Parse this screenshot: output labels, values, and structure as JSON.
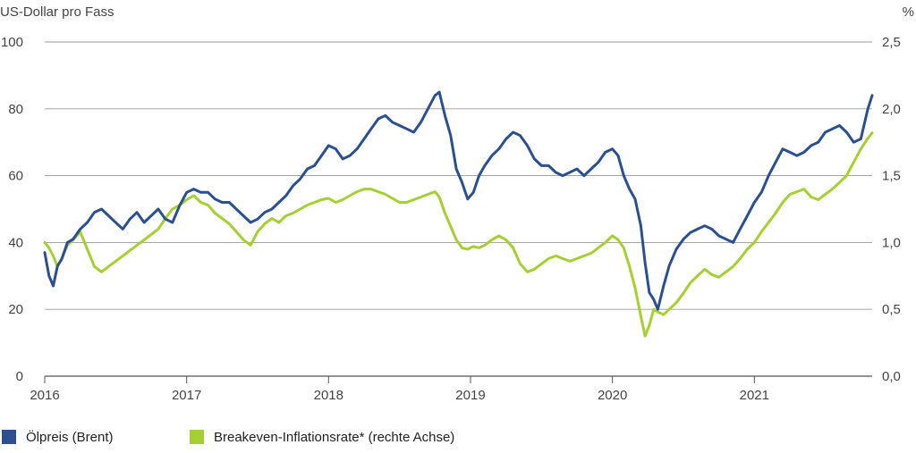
{
  "chart_data": {
    "type": "line",
    "left_axis": {
      "unit_label": "US-Dollar pro Fass",
      "ylim": [
        0,
        100
      ],
      "ticks": [
        "0",
        "20",
        "40",
        "60",
        "80",
        "100"
      ]
    },
    "right_axis": {
      "unit_label": "%",
      "ylim": [
        0.0,
        2.5
      ],
      "ticks": [
        "0,0",
        "0,5",
        "1,0",
        "1,5",
        "2,0",
        "2,5"
      ]
    },
    "x_axis": {
      "xlim": [
        2016.0,
        2021.83
      ],
      "ticks": [
        "2016",
        "2017",
        "2018",
        "2019",
        "2020",
        "2021"
      ]
    },
    "grid": true,
    "legend": {
      "placement": "bottom-left"
    },
    "series": [
      {
        "name": "Ölpreis (Brent)",
        "axis": "left",
        "color": "#2c4f8f",
        "x": [
          2016.0,
          2016.03,
          2016.06,
          2016.09,
          2016.12,
          2016.16,
          2016.2,
          2016.25,
          2016.3,
          2016.35,
          2016.4,
          2016.45,
          2016.5,
          2016.55,
          2016.6,
          2016.65,
          2016.7,
          2016.75,
          2016.8,
          2016.85,
          2016.9,
          2016.95,
          2017.0,
          2017.05,
          2017.1,
          2017.15,
          2017.2,
          2017.25,
          2017.3,
          2017.35,
          2017.4,
          2017.45,
          2017.5,
          2017.55,
          2017.6,
          2017.65,
          2017.7,
          2017.75,
          2017.8,
          2017.85,
          2017.9,
          2017.95,
          2018.0,
          2018.05,
          2018.1,
          2018.15,
          2018.2,
          2018.25,
          2018.3,
          2018.35,
          2018.4,
          2018.45,
          2018.5,
          2018.55,
          2018.6,
          2018.65,
          2018.7,
          2018.75,
          2018.78,
          2018.82,
          2018.86,
          2018.9,
          2018.94,
          2018.98,
          2019.02,
          2019.06,
          2019.1,
          2019.15,
          2019.2,
          2019.25,
          2019.3,
          2019.35,
          2019.4,
          2019.45,
          2019.5,
          2019.55,
          2019.6,
          2019.65,
          2019.7,
          2019.75,
          2019.8,
          2019.85,
          2019.9,
          2019.95,
          2020.0,
          2020.04,
          2020.08,
          2020.12,
          2020.16,
          2020.2,
          2020.23,
          2020.26,
          2020.29,
          2020.32,
          2020.36,
          2020.4,
          2020.45,
          2020.5,
          2020.55,
          2020.6,
          2020.65,
          2020.7,
          2020.75,
          2020.8,
          2020.85,
          2020.9,
          2020.95,
          2021.0,
          2021.05,
          2021.1,
          2021.15,
          2021.2,
          2021.25,
          2021.3,
          2021.35,
          2021.4,
          2021.45,
          2021.5,
          2021.55,
          2021.6,
          2021.65,
          2021.7,
          2021.75,
          2021.8,
          2021.83
        ],
        "values": [
          37,
          30,
          27,
          33,
          35,
          40,
          41,
          44,
          46,
          49,
          50,
          48,
          46,
          44,
          47,
          49,
          46,
          48,
          50,
          47,
          46,
          51,
          55,
          56,
          55,
          55,
          53,
          52,
          52,
          50,
          48,
          46,
          47,
          49,
          50,
          52,
          54,
          57,
          59,
          62,
          63,
          66,
          69,
          68,
          65,
          66,
          68,
          71,
          74,
          77,
          78,
          76,
          75,
          74,
          73,
          76,
          80,
          84,
          85,
          78,
          72,
          62,
          58,
          53,
          55,
          60,
          63,
          66,
          68,
          71,
          73,
          72,
          69,
          65,
          63,
          63,
          61,
          60,
          61,
          62,
          60,
          62,
          64,
          67,
          68,
          66,
          60,
          56,
          53,
          45,
          34,
          25,
          23,
          20,
          27,
          33,
          38,
          41,
          43,
          44,
          45,
          44,
          42,
          41,
          40,
          44,
          48,
          52,
          55,
          60,
          64,
          68,
          67,
          66,
          67,
          69,
          70,
          73,
          74,
          75,
          73,
          70,
          71,
          80,
          84
        ]
      },
      {
        "name": "Breakeven-Inflationsrate* (rechte Achse)",
        "axis": "right",
        "color": "#a6cf32",
        "x": [
          2016.0,
          2016.03,
          2016.06,
          2016.09,
          2016.12,
          2016.16,
          2016.2,
          2016.25,
          2016.3,
          2016.35,
          2016.4,
          2016.45,
          2016.5,
          2016.55,
          2016.6,
          2016.65,
          2016.7,
          2016.75,
          2016.8,
          2016.85,
          2016.9,
          2016.95,
          2017.0,
          2017.05,
          2017.1,
          2017.15,
          2017.2,
          2017.25,
          2017.3,
          2017.35,
          2017.4,
          2017.45,
          2017.5,
          2017.55,
          2017.6,
          2017.65,
          2017.7,
          2017.75,
          2017.8,
          2017.85,
          2017.9,
          2017.95,
          2018.0,
          2018.05,
          2018.1,
          2018.15,
          2018.2,
          2018.25,
          2018.3,
          2018.35,
          2018.4,
          2018.45,
          2018.5,
          2018.55,
          2018.6,
          2018.65,
          2018.7,
          2018.75,
          2018.78,
          2018.82,
          2018.86,
          2018.9,
          2018.94,
          2018.98,
          2019.02,
          2019.06,
          2019.1,
          2019.15,
          2019.2,
          2019.25,
          2019.3,
          2019.35,
          2019.4,
          2019.45,
          2019.5,
          2019.55,
          2019.6,
          2019.65,
          2019.7,
          2019.75,
          2019.8,
          2019.85,
          2019.9,
          2019.95,
          2020.0,
          2020.04,
          2020.08,
          2020.12,
          2020.16,
          2020.2,
          2020.23,
          2020.26,
          2020.29,
          2020.32,
          2020.36,
          2020.4,
          2020.45,
          2020.5,
          2020.55,
          2020.6,
          2020.65,
          2020.7,
          2020.75,
          2020.8,
          2020.85,
          2020.9,
          2020.95,
          2021.0,
          2021.05,
          2021.1,
          2021.15,
          2021.2,
          2021.25,
          2021.3,
          2021.35,
          2021.4,
          2021.45,
          2021.5,
          2021.55,
          2021.6,
          2021.65,
          2021.7,
          2021.75,
          2021.8,
          2021.83
        ],
        "values": [
          1.0,
          0.96,
          0.9,
          0.82,
          0.88,
          0.98,
          1.02,
          1.08,
          0.95,
          0.82,
          0.78,
          0.82,
          0.86,
          0.9,
          0.94,
          0.98,
          1.02,
          1.06,
          1.1,
          1.18,
          1.25,
          1.28,
          1.32,
          1.35,
          1.3,
          1.28,
          1.22,
          1.18,
          1.14,
          1.08,
          1.02,
          0.98,
          1.08,
          1.14,
          1.18,
          1.15,
          1.2,
          1.22,
          1.25,
          1.28,
          1.3,
          1.32,
          1.33,
          1.3,
          1.32,
          1.35,
          1.38,
          1.4,
          1.4,
          1.38,
          1.36,
          1.33,
          1.3,
          1.3,
          1.32,
          1.34,
          1.36,
          1.38,
          1.34,
          1.22,
          1.12,
          1.02,
          0.96,
          0.95,
          0.97,
          0.96,
          0.98,
          1.02,
          1.05,
          1.02,
          0.96,
          0.84,
          0.78,
          0.8,
          0.84,
          0.88,
          0.9,
          0.88,
          0.86,
          0.88,
          0.9,
          0.92,
          0.96,
          1.0,
          1.05,
          1.02,
          0.96,
          0.82,
          0.66,
          0.45,
          0.3,
          0.38,
          0.5,
          0.48,
          0.46,
          0.5,
          0.55,
          0.62,
          0.7,
          0.75,
          0.8,
          0.76,
          0.74,
          0.78,
          0.82,
          0.88,
          0.95,
          1.0,
          1.08,
          1.15,
          1.22,
          1.3,
          1.36,
          1.38,
          1.4,
          1.34,
          1.32,
          1.36,
          1.4,
          1.45,
          1.5,
          1.6,
          1.7,
          1.78,
          1.82
        ]
      }
    ]
  }
}
